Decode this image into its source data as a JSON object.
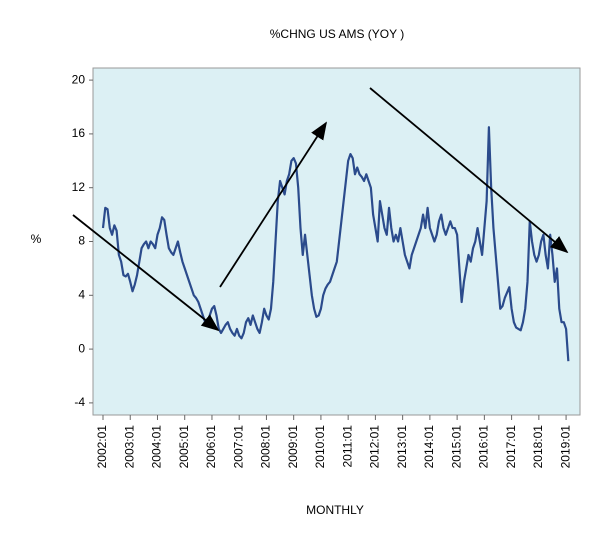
{
  "chart_data": {
    "type": "line",
    "title": "%CHNG US AMS (YOY )",
    "y_label": "%",
    "x_label": "MONTHLY",
    "categories": [
      "2002:01",
      null,
      null,
      null,
      null,
      null,
      null,
      null,
      null,
      null,
      null,
      null,
      "2003:01",
      null,
      null,
      null,
      null,
      null,
      null,
      null,
      null,
      null,
      null,
      null,
      "2004:01",
      null,
      null,
      null,
      null,
      null,
      null,
      null,
      null,
      null,
      null,
      null,
      "2005:01",
      null,
      null,
      null,
      null,
      null,
      null,
      null,
      null,
      null,
      null,
      null,
      "2006:01",
      null,
      null,
      null,
      null,
      null,
      null,
      null,
      null,
      null,
      null,
      null,
      "2007:01",
      null,
      null,
      null,
      null,
      null,
      null,
      null,
      null,
      null,
      null,
      null,
      "2008:01",
      null,
      null,
      null,
      null,
      null,
      null,
      null,
      null,
      null,
      null,
      null,
      "2009:01",
      null,
      null,
      null,
      null,
      null,
      null,
      null,
      null,
      null,
      null,
      null,
      "2010:01",
      null,
      null,
      null,
      null,
      null,
      null,
      null,
      null,
      null,
      null,
      null,
      "2011:01",
      null,
      null,
      null,
      null,
      null,
      null,
      null,
      null,
      null,
      null,
      null,
      "2012:01",
      null,
      null,
      null,
      null,
      null,
      null,
      null,
      null,
      null,
      null,
      null,
      "2013:01",
      null,
      null,
      null,
      null,
      null,
      null,
      null,
      null,
      null,
      null,
      null,
      "2014:01",
      null,
      null,
      null,
      null,
      null,
      null,
      null,
      null,
      null,
      null,
      null,
      "2015:01",
      null,
      null,
      null,
      null,
      null,
      null,
      null,
      null,
      null,
      null,
      null,
      "2016:01",
      null,
      null,
      null,
      null,
      null,
      null,
      null,
      null,
      null,
      null,
      null,
      "2017:01",
      null,
      null,
      null,
      null,
      null,
      null,
      null,
      null,
      null,
      null,
      null,
      "2018:01",
      null,
      null,
      null,
      null,
      null,
      null,
      null,
      null,
      null,
      null,
      null,
      "2019:01",
      null
    ],
    "series": [
      {
        "color": "#2b4b8c",
        "values": [
          9,
          10.5,
          10.4,
          9,
          8.5,
          9.2,
          8.8,
          7,
          6.5,
          5.5,
          5.4,
          5.6,
          5,
          4.3,
          4.8,
          5.5,
          6.5,
          7.5,
          7.8,
          8,
          7.5,
          8,
          7.8,
          7.5,
          8.5,
          9,
          9.8,
          9.6,
          8.5,
          7.5,
          7.2,
          7,
          7.5,
          8,
          7.2,
          6.5,
          6,
          5.5,
          5,
          4.5,
          4,
          3.8,
          3.5,
          3,
          2.5,
          2,
          1.8,
          2.5,
          3,
          3.2,
          2.5,
          1.5,
          1.2,
          1.5,
          1.8,
          2,
          1.5,
          1.2,
          1,
          1.5,
          1,
          0.8,
          1.2,
          2,
          2.3,
          1.8,
          2.5,
          2,
          1.5,
          1.2,
          2,
          3,
          2.5,
          2.2,
          3,
          5,
          8,
          11,
          12.5,
          12,
          11.5,
          12.5,
          13,
          14,
          14.2,
          13.8,
          12,
          9,
          7,
          8.5,
          7,
          5.5,
          4,
          3,
          2.4,
          2.5,
          3,
          4,
          4.5,
          4.8,
          5,
          5.5,
          6,
          6.5,
          8,
          9.5,
          11,
          12.5,
          14,
          14.5,
          14.2,
          13,
          13.5,
          13,
          12.8,
          12.5,
          13,
          12.5,
          12,
          10,
          9,
          8,
          11,
          10,
          9,
          8.5,
          10.5,
          9,
          8,
          8.5,
          8,
          9,
          8,
          7,
          6.5,
          6,
          7,
          7.5,
          8,
          8.5,
          9,
          10,
          9,
          10.5,
          9,
          8.5,
          8,
          8.5,
          9.5,
          10,
          9,
          8.5,
          9,
          9.5,
          9,
          9,
          8.5,
          6,
          3.5,
          5,
          6,
          7,
          6.5,
          7.5,
          8,
          9,
          8,
          7,
          9,
          11,
          16.5,
          12,
          9,
          7,
          5,
          3,
          3.2,
          3.8,
          4.2,
          4.6,
          3,
          2,
          1.6,
          1.5,
          1.4,
          2,
          3,
          5,
          9.5,
          8,
          7,
          6.5,
          7,
          8,
          8.5,
          7,
          6,
          8.5,
          7,
          5,
          6,
          3,
          2,
          2,
          1.5,
          -0.9
        ]
      }
    ],
    "ylim": [
      -4.9,
      20.9
    ],
    "yticks": [
      -4,
      0,
      4,
      8,
      12,
      16,
      20
    ],
    "plot_background": "#dcf0f4"
  }
}
